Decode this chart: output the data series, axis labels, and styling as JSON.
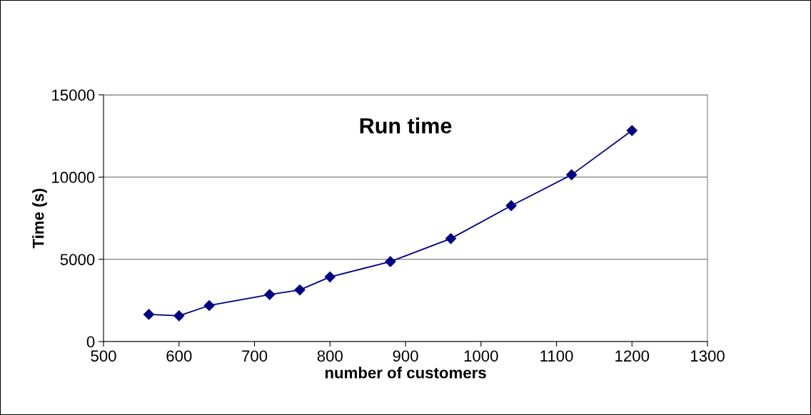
{
  "chart_data": {
    "type": "line",
    "title": "Run time",
    "xlabel": "number of customers",
    "ylabel": "Time (s)",
    "x": [
      560,
      600,
      640,
      720,
      760,
      800,
      880,
      960,
      1040,
      1120,
      1200
    ],
    "series": [
      {
        "color": "#000080",
        "values": [
          1650,
          1570,
          2190,
          2860,
          3140,
          3930,
          4860,
          6260,
          8260,
          10140,
          12830
        ]
      }
    ],
    "xlim": [
      500,
      1300
    ],
    "xticks": [
      500,
      600,
      700,
      800,
      900,
      1000,
      1100,
      1200,
      1300
    ],
    "ylim": [
      0,
      15000
    ],
    "yticks": [
      0,
      5000,
      10000,
      15000
    ],
    "grid": "y",
    "marker": "diamond",
    "line_style": "solid",
    "legend": false
  }
}
